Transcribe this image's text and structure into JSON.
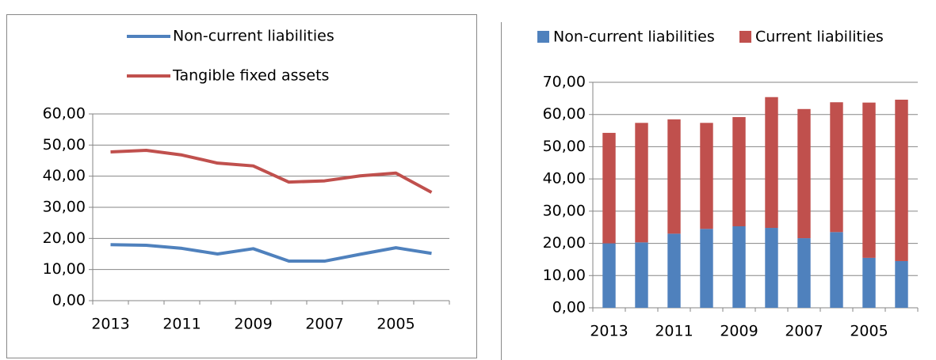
{
  "chart_data": [
    {
      "type": "line",
      "categories": [
        "2013",
        null,
        "2011",
        null,
        "2009",
        null,
        "2007",
        null,
        "2005",
        null
      ],
      "series": [
        {
          "name": "Non-current liabilities",
          "color": "#4f81bd",
          "values": [
            18,
            17.8,
            16.8,
            15,
            16.7,
            12.7,
            12.7,
            14.9,
            17,
            15.2
          ]
        },
        {
          "name": "Tangible fixed assets",
          "color": "#c0504d",
          "values": [
            47.8,
            48.3,
            46.8,
            44.2,
            43.3,
            38.1,
            38.5,
            40.1,
            41,
            34.8
          ]
        }
      ],
      "ylim": [
        0,
        60
      ],
      "yticks": [
        {
          "value": 0,
          "label": "0,00"
        },
        {
          "value": 10,
          "label": "10,00"
        },
        {
          "value": 20,
          "label": "20,00"
        },
        {
          "value": 30,
          "label": "30,00"
        },
        {
          "value": 40,
          "label": "40,00"
        },
        {
          "value": 50,
          "label": "50,00"
        },
        {
          "value": 60,
          "label": "60,00"
        }
      ],
      "grid": true,
      "legend": "top"
    },
    {
      "type": "bar",
      "stacked": true,
      "categories": [
        "2013",
        null,
        "2011",
        null,
        "2009",
        null,
        "2007",
        null,
        "2005",
        null
      ],
      "series": [
        {
          "name": "Non-current liabilities",
          "color": "#4f81bd",
          "values": [
            20,
            20.3,
            23,
            24.5,
            25.3,
            24.8,
            21.6,
            23.5,
            15.5,
            14.5
          ]
        },
        {
          "name": "Current liabilities",
          "color": "#c0504d",
          "values": [
            34.3,
            37.1,
            35.5,
            32.9,
            33.9,
            40.6,
            40.1,
            40.3,
            48.2,
            50.1
          ]
        }
      ],
      "ylim": [
        0,
        70
      ],
      "yticks": [
        {
          "value": 0,
          "label": "0,00"
        },
        {
          "value": 10,
          "label": "10,00"
        },
        {
          "value": 20,
          "label": "20,00"
        },
        {
          "value": 30,
          "label": "30,00"
        },
        {
          "value": 40,
          "label": "40,00"
        },
        {
          "value": 50,
          "label": "50,00"
        },
        {
          "value": 60,
          "label": "60,00"
        },
        {
          "value": 70,
          "label": "70,00"
        }
      ],
      "grid": true,
      "legend": "top"
    }
  ]
}
